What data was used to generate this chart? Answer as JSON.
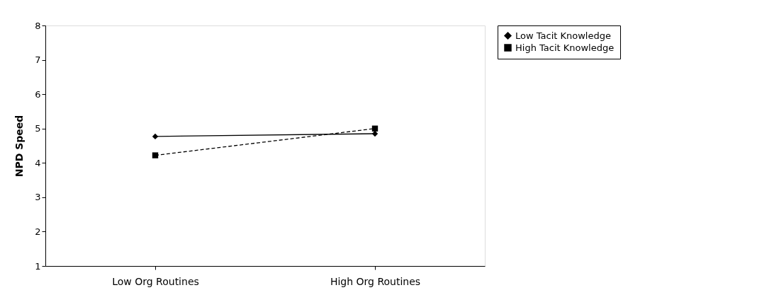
{
  "chart_data": {
    "type": "line",
    "ylabel": "NPD Speed",
    "categories": [
      "Low Org Routines",
      "High Org Routines"
    ],
    "series": [
      {
        "name": "Low Tacit Knowledge",
        "color": "#000000",
        "values": [
          4.77,
          4.85
        ],
        "marker": "diamond",
        "line_style": "solid"
      },
      {
        "name": "High Tacit Knowledge",
        "color": "#000000",
        "values": [
          4.22,
          5.0
        ],
        "marker": "square",
        "line_style": "dashed"
      }
    ],
    "ylim": [
      1,
      8
    ],
    "yticks": [
      1,
      2,
      3,
      4,
      5,
      6,
      7,
      8
    ],
    "grid": false,
    "legend": "right"
  }
}
